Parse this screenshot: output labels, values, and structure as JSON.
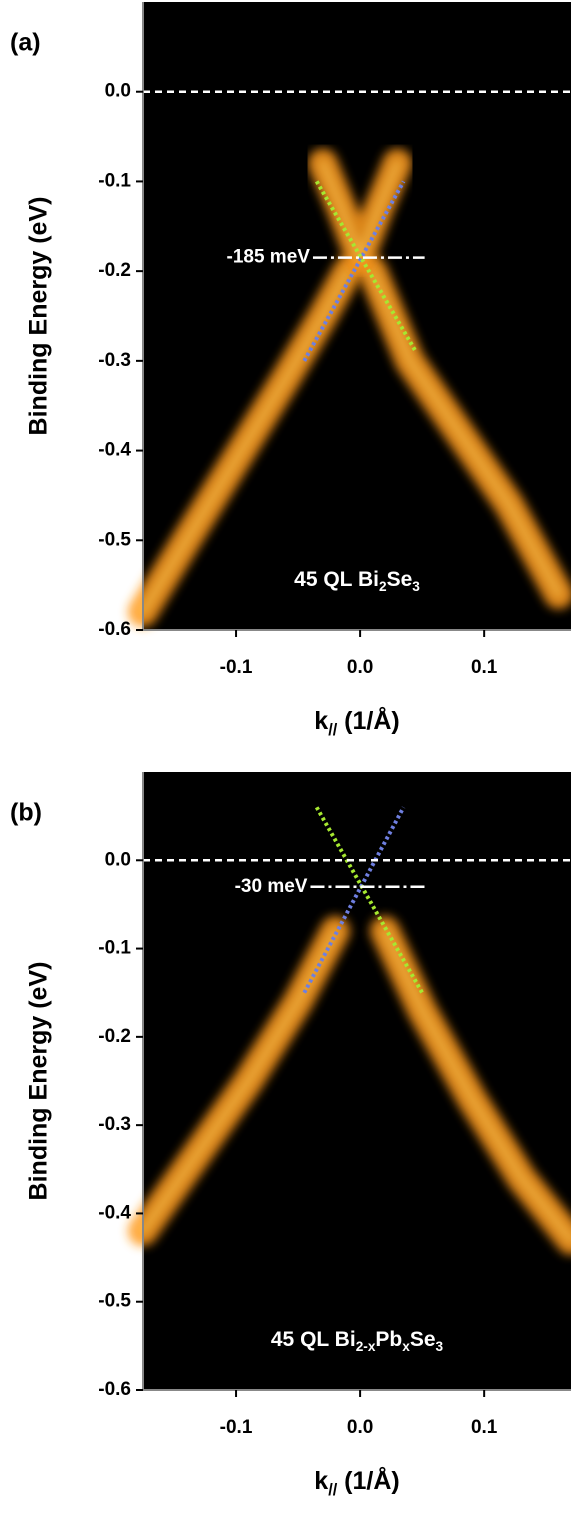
{
  "chart_data": [
    {
      "type": "line",
      "label": "(a)",
      "ylabel": "Binding Energy (eV)",
      "xlabel": [
        {
          "t": "k"
        },
        {
          "sub": "//"
        },
        {
          "t": "  (1/Å)"
        }
      ],
      "note": [
        {
          "t": "45 QL Bi"
        },
        {
          "sub": "2"
        },
        {
          "t": "Se"
        },
        {
          "sub": "3"
        }
      ],
      "xlim": [
        -0.175,
        0.17
      ],
      "ylim": [
        -0.6,
        0.1
      ],
      "xticks": [
        -0.1,
        {
          "value": 0,
          "label": "0.0"
        },
        0.1
      ],
      "yticks": [
        {
          "value": 0,
          "label": "0.0"
        },
        -0.1,
        -0.2,
        -0.3,
        -0.4,
        -0.5,
        -0.6
      ],
      "series": [
        {
          "style": "band",
          "color": "#ff9a1e",
          "x": [
            -0.175,
            -0.14,
            -0.1,
            -0.06,
            -0.03,
            -0.01
          ],
          "values": [
            -0.58,
            -0.5,
            -0.41,
            -0.32,
            -0.25,
            -0.2
          ]
        },
        {
          "style": "band",
          "color": "#ff9a1e",
          "x": [
            0.01,
            0.04,
            0.08,
            0.12,
            0.16
          ],
          "values": [
            -0.2,
            -0.3,
            -0.38,
            -0.46,
            -0.56
          ]
        },
        {
          "style": "band",
          "color": "#ff9a1e",
          "x": [
            -0.03,
            -0.015,
            0,
            0.015,
            0.03
          ],
          "values": [
            -0.08,
            -0.13,
            -0.185,
            -0.13,
            -0.08
          ]
        },
        {
          "style": "dotted",
          "color": "#6f7fe0",
          "x": [
            -0.045,
            0.035
          ],
          "values": [
            -0.3,
            -0.1
          ]
        },
        {
          "style": "dotted",
          "color": "#a6e830",
          "x": [
            -0.035,
            0.045
          ],
          "values": [
            -0.1,
            -0.29
          ]
        }
      ],
      "reference_lines": [
        {
          "y": 0
        },
        {
          "y": -0.185,
          "x": [
            -0.038,
            0.052
          ],
          "label": "-185 meV"
        }
      ]
    },
    {
      "type": "line",
      "label": "(b)",
      "ylabel": "Binding Energy (eV)",
      "xlabel": [
        {
          "t": "k"
        },
        {
          "sub": "//"
        },
        {
          "t": "  (1/Å)"
        }
      ],
      "note": [
        {
          "t": "45 QL Bi"
        },
        {
          "sub": "2-x"
        },
        {
          "t": "Pb"
        },
        {
          "sub": "x"
        },
        {
          "t": "Se"
        },
        {
          "sub": "3"
        }
      ],
      "xlim": [
        -0.175,
        0.17
      ],
      "ylim": [
        -0.6,
        0.1
      ],
      "xticks": [
        -0.1,
        {
          "value": 0,
          "label": "0.0"
        },
        0.1
      ],
      "yticks": [
        {
          "value": 0,
          "label": "0.0"
        },
        -0.1,
        -0.2,
        -0.3,
        -0.4,
        -0.5,
        -0.6
      ],
      "series": [
        {
          "style": "band",
          "color": "#ff9a1e",
          "x": [
            -0.175,
            -0.13,
            -0.09,
            -0.05,
            -0.02
          ],
          "values": [
            -0.42,
            -0.33,
            -0.25,
            -0.16,
            -0.08
          ]
        },
        {
          "style": "band",
          "color": "#ff9a1e",
          "x": [
            0.02,
            0.05,
            0.09,
            0.13,
            0.17
          ],
          "values": [
            -0.08,
            -0.17,
            -0.27,
            -0.36,
            -0.43
          ]
        },
        {
          "style": "dotted",
          "color": "#6f7fe0",
          "x": [
            -0.045,
            0.035
          ],
          "values": [
            -0.15,
            0.06
          ]
        },
        {
          "style": "dotted",
          "color": "#a6e830",
          "x": [
            -0.035,
            0.05
          ],
          "values": [
            0.06,
            -0.15
          ]
        }
      ],
      "reference_lines": [
        {
          "y": 0
        },
        {
          "y": -0.03,
          "x": [
            -0.04,
            0.052
          ],
          "label": "-30 meV"
        }
      ]
    }
  ]
}
